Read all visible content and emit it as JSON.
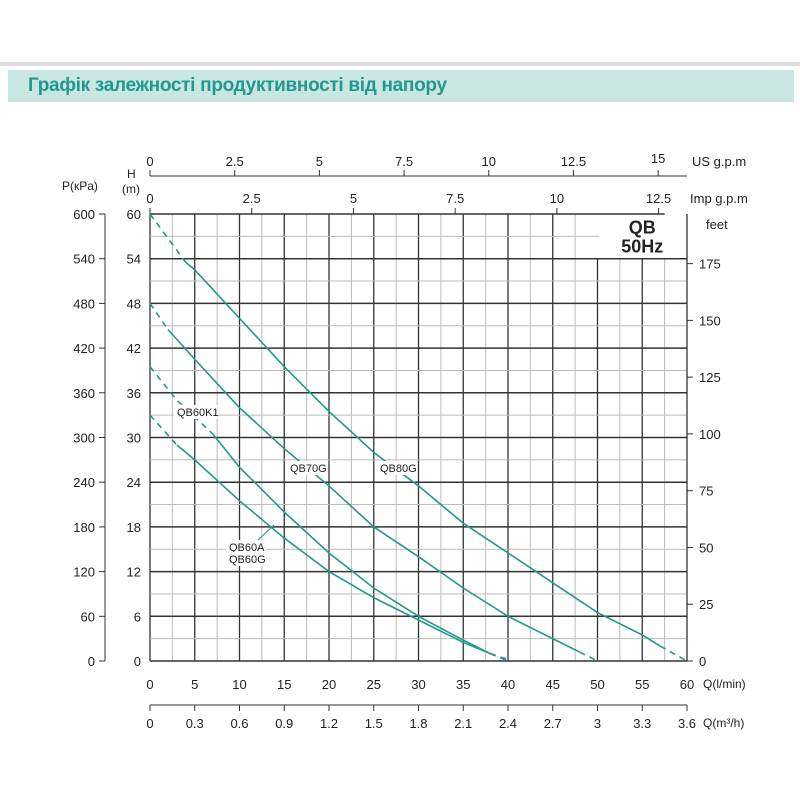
{
  "header": {
    "title": "Графік залежності продуктивності від напору"
  },
  "chart_data": {
    "type": "line",
    "title": "",
    "badge": {
      "line1": "QB",
      "line2": "50Hz"
    },
    "xlabel": "Q(l/min)",
    "ylabel": "H (m)",
    "xlim": [
      0,
      60
    ],
    "ylim": [
      0,
      60
    ],
    "grid": true,
    "colors": {
      "curve": "#1f9a8c",
      "grid_major": "#333333",
      "grid_minor": "#bbbbbb"
    },
    "axes": {
      "x_lmin": {
        "label": "Q(l/min)",
        "ticks": [
          "0",
          "5",
          "10",
          "15",
          "20",
          "25",
          "30",
          "35",
          "40",
          "45",
          "50",
          "55",
          "60"
        ]
      },
      "x_m3h": {
        "label": "Q(m³/h)",
        "ticks": [
          "0",
          "0.3",
          "0.6",
          "0.9",
          "1.2",
          "1.5",
          "1.8",
          "2.1",
          "2.4",
          "2.7",
          "3",
          "3.3",
          "3.6"
        ]
      },
      "x_us_gpm": {
        "label": "US  g.p.m",
        "ticks": [
          "0",
          "2.5",
          "5",
          "7.5",
          "10",
          "12.5",
          "15"
        ]
      },
      "x_imp_gpm": {
        "label": "Imp  g.p.m",
        "ticks": [
          "0",
          "2.5",
          "5",
          "7.5",
          "10",
          "12.5"
        ]
      },
      "y_m": {
        "label_top": "H",
        "label_bottom": "(m)",
        "ticks": [
          "0",
          "6",
          "12",
          "18",
          "24",
          "30",
          "36",
          "42",
          "48",
          "54",
          "60"
        ]
      },
      "y_kpa": {
        "label": "P(кPa)",
        "ticks": [
          "0",
          "60",
          "120",
          "180",
          "240",
          "300",
          "360",
          "420",
          "480",
          "540",
          "600"
        ]
      },
      "y_feet": {
        "label": "feet",
        "ticks": [
          "0",
          "25",
          "50",
          "75",
          "100",
          "125",
          "150",
          "175"
        ]
      }
    },
    "series": [
      {
        "name": "QB80G",
        "x": [
          0,
          4,
          5,
          10,
          15,
          20,
          25,
          30,
          35,
          40,
          45,
          50,
          55,
          57,
          60
        ],
        "y": [
          60,
          53.5,
          52.5,
          46,
          39.5,
          33.5,
          28,
          23.5,
          18.5,
          14.5,
          10.5,
          6.5,
          3.5,
          2,
          0
        ],
        "dashed_until": 4,
        "dashed_from": 57
      },
      {
        "name": "QB70G",
        "x": [
          0,
          2,
          5,
          10,
          15,
          20,
          25,
          30,
          35,
          40,
          45,
          48,
          50
        ],
        "y": [
          48,
          44.5,
          40.5,
          34,
          28.5,
          23.5,
          18,
          14,
          9.8,
          6,
          3,
          1.2,
          0
        ],
        "dashed_until": 2,
        "dashed_from": 48
      },
      {
        "name": "QB60K1",
        "x": [
          0,
          3,
          7,
          10,
          15,
          20,
          25,
          30,
          35,
          38,
          40
        ],
        "y": [
          39.5,
          35,
          30.5,
          26,
          20,
          14.5,
          9.8,
          6,
          2.8,
          1,
          0
        ],
        "dashed_until": 7,
        "dashed_from": 38
      },
      {
        "name": "QB60A / QB60G",
        "labels": [
          "QB60A",
          "QB60G"
        ],
        "x": [
          0,
          3,
          5,
          10,
          15,
          20,
          25,
          30,
          35,
          38,
          40
        ],
        "y": [
          33,
          29,
          27,
          21.5,
          16.5,
          12,
          8.5,
          5.5,
          2.5,
          1,
          0.2
        ],
        "dashed_until": 3,
        "dashed_from": 38
      }
    ]
  }
}
